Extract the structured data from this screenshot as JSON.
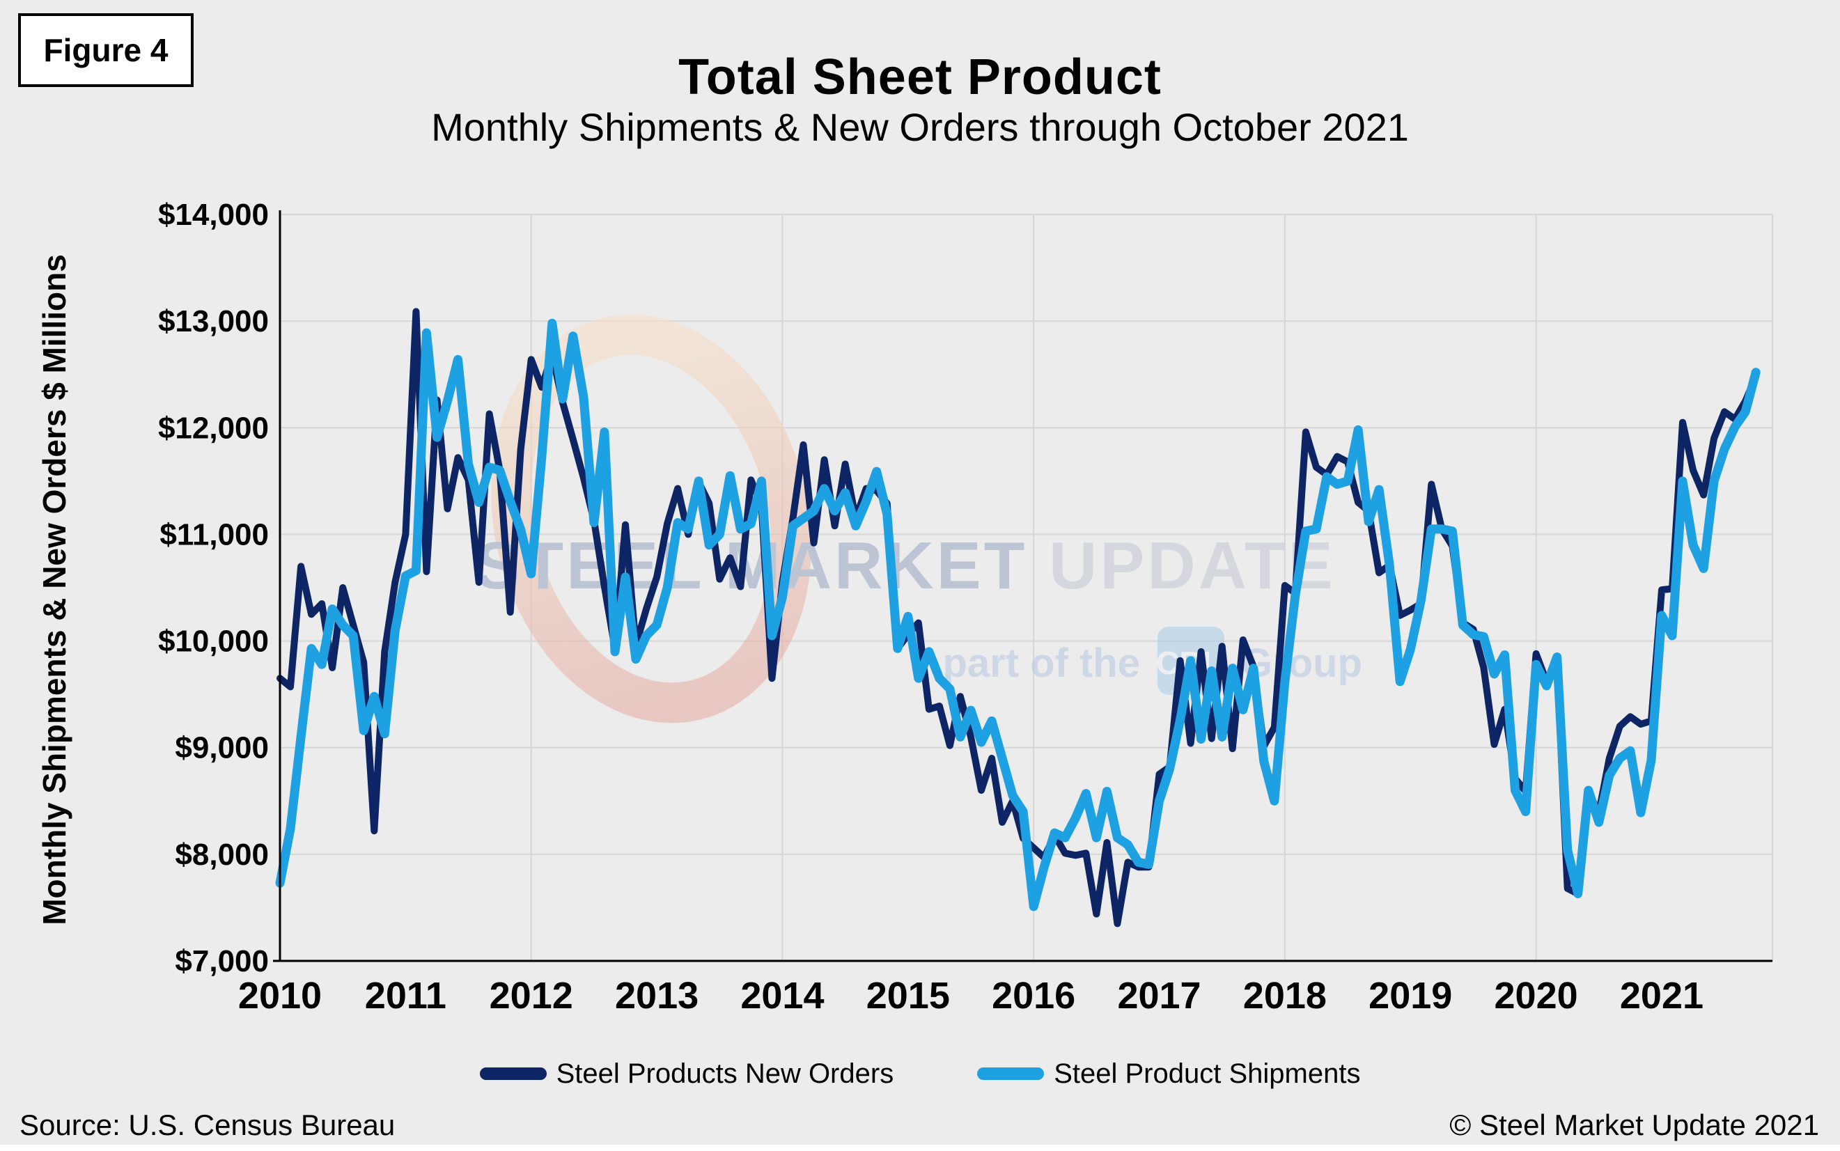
{
  "figure_label": "Figure 4",
  "title": "Total Sheet Product",
  "subtitle": "Monthly Shipments & New Orders through October 2021",
  "y_axis_title": "Monthly Shipments & New Orders $ Millions",
  "footer": {
    "source": "Source: U.S. Census Bureau",
    "copyright": "© Steel Market Update 2021"
  },
  "watermark": {
    "line1_strong": "STEEL MARKET",
    "line1_light": " UPDATE",
    "line2_prefix": "part of the",
    "line2_box": "CRU",
    "line2_suffix": "Group",
    "swoosh_top_color": "#f7e0c6",
    "swoosh_bottom_color": "#e5a9a1"
  },
  "legend": [
    {
      "label": "Steel Products New Orders",
      "color": "#0d2465"
    },
    {
      "label": "Steel Product Shipments",
      "color": "#1da1e2"
    }
  ],
  "colors": {
    "background": "#ececec",
    "gridline": "#d6d6d6",
    "axis": "#000000",
    "new_orders": "#0d2465",
    "shipments": "#1da1e2"
  },
  "chart_data": {
    "type": "line",
    "title": "Total Sheet Product",
    "subtitle": "Monthly Shipments & New Orders through October 2021",
    "ylabel": "Monthly Shipments & New Orders $ Millions",
    "ylim": [
      7000,
      14000
    ],
    "y_ticks": [
      {
        "value": 14000,
        "label": "$14,000"
      },
      {
        "value": 13000,
        "label": "$13,000"
      },
      {
        "value": 12000,
        "label": "$12,000"
      },
      {
        "value": 11000,
        "label": "$11,000"
      },
      {
        "value": 10000,
        "label": "$10,000"
      },
      {
        "value": 9000,
        "label": "$9,000"
      },
      {
        "value": 8000,
        "label": "$8,000"
      },
      {
        "value": 7000,
        "label": "$7,000"
      }
    ],
    "x_tick_labels": [
      "2010",
      "2011",
      "2012",
      "2013",
      "2014",
      "2015",
      "2016",
      "2017",
      "2018",
      "2019",
      "2020",
      "2021"
    ],
    "x_gridline_years": [
      "2012",
      "2014",
      "2016",
      "2018",
      "2020"
    ],
    "x_monthly_from": "2010-01",
    "x_monthly_to": "2021-10",
    "legend_position": "bottom",
    "grid": true,
    "series": [
      {
        "name": "Steel Products New Orders",
        "color": "#0d2465",
        "values": [
          9650,
          9570,
          10700,
          10250,
          10350,
          9750,
          10500,
          10150,
          9800,
          8220,
          9900,
          10550,
          11000,
          13090,
          10650,
          12260,
          11240,
          11720,
          11510,
          10550,
          12130,
          11600,
          10270,
          11800,
          12640,
          12380,
          12690,
          12240,
          11890,
          11530,
          11130,
          10510,
          9930,
          11090,
          9960,
          10300,
          10600,
          11100,
          11430,
          11000,
          11490,
          11290,
          10580,
          10780,
          10510,
          11510,
          11270,
          9650,
          10550,
          11150,
          11840,
          10920,
          11700,
          11080,
          11660,
          11150,
          11430,
          11410,
          11290,
          9930,
          10060,
          10170,
          9360,
          9390,
          9020,
          9480,
          9100,
          8600,
          8900,
          8300,
          8500,
          8150,
          8060,
          7970,
          8180,
          8010,
          7990,
          8010,
          7440,
          8110,
          7350,
          7925,
          7880,
          7880,
          8750,
          8820,
          9815,
          9040,
          9900,
          9085,
          9950,
          8990,
          10010,
          9760,
          9015,
          9190,
          10520,
          10450,
          11960,
          11630,
          11560,
          11730,
          11680,
          11300,
          11220,
          10640,
          10710,
          10240,
          10290,
          10350,
          11470,
          11050,
          10890,
          10170,
          10110,
          9750,
          9030,
          9360,
          8710,
          8590,
          9880,
          9620,
          9780,
          7680,
          7630,
          8580,
          8390,
          8900,
          9200,
          9290,
          9220,
          9250,
          10480,
          10490,
          12050,
          11600,
          11370,
          11900,
          12150,
          12080,
          12250,
          12480
        ]
      },
      {
        "name": "Steel Product Shipments",
        "color": "#1da1e2",
        "values": [
          7730,
          8240,
          9100,
          9930,
          9780,
          10300,
          10150,
          10050,
          9160,
          9480,
          9130,
          10100,
          10610,
          10660,
          12890,
          11910,
          12250,
          12640,
          11660,
          11300,
          11630,
          11600,
          11310,
          11045,
          10630,
          11720,
          12980,
          12270,
          12860,
          12290,
          11110,
          11960,
          9900,
          10600,
          9830,
          10050,
          10150,
          10500,
          11110,
          11050,
          11500,
          10900,
          11000,
          11550,
          11050,
          11100,
          11500,
          10050,
          10410,
          11080,
          11150,
          11220,
          11430,
          11220,
          11390,
          11080,
          11310,
          11590,
          11190,
          9930,
          10230,
          9650,
          9900,
          9650,
          9550,
          9100,
          9350,
          9050,
          9250,
          8900,
          8550,
          8400,
          7510,
          7880,
          8200,
          8155,
          8340,
          8570,
          8155,
          8590,
          8155,
          8090,
          7925,
          7905,
          8500,
          8800,
          9260,
          9815,
          9080,
          9720,
          9100,
          9745,
          9355,
          9745,
          8870,
          8500,
          9620,
          10430,
          11030,
          11050,
          11540,
          11470,
          11500,
          11980,
          11120,
          11420,
          10710,
          9620,
          9920,
          10380,
          11050,
          11050,
          11030,
          10150,
          10060,
          10040,
          9690,
          9870,
          8600,
          8400,
          9780,
          9580,
          9850,
          8040,
          7630,
          8600,
          8300,
          8740,
          8900,
          8970,
          8390,
          8880,
          10240,
          10050,
          11500,
          10900,
          10680,
          11500,
          11800,
          12010,
          12150,
          12520
        ]
      }
    ]
  }
}
